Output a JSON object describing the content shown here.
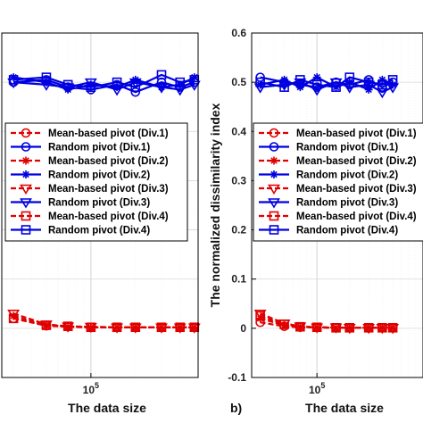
{
  "chart_data": [
    {
      "panel": "a",
      "type": "line",
      "xlabel": "The data size",
      "ylabel": "",
      "x_scale": "log",
      "x_tick_labels": [
        "10^5"
      ],
      "ylim": [
        -0.1,
        0.6
      ],
      "grid": true,
      "legend_position": "center-left",
      "x": [
        30000,
        50000,
        70000,
        100000,
        150000,
        200000,
        300000,
        400000,
        500000
      ],
      "series": [
        {
          "name": "Mean-based pivot (Div.1)",
          "color": "#e00000",
          "line": "dashed",
          "marker": "circle",
          "values": [
            0.02,
            0.005,
            0.003,
            0.002,
            0.002,
            0.002,
            0.002,
            0.002,
            0.002
          ]
        },
        {
          "name": "Random pivot (Div.1)",
          "color": "#0000e0",
          "line": "solid",
          "marker": "circle",
          "values": [
            0.5,
            0.505,
            0.49,
            0.485,
            0.495,
            0.48,
            0.5,
            0.49,
            0.5
          ]
        },
        {
          "name": "Mean-based pivot (Div.2)",
          "color": "#e00000",
          "line": "dashed",
          "marker": "star",
          "values": [
            0.025,
            0.006,
            0.003,
            0.002,
            0.002,
            0.002,
            0.002,
            0.002,
            0.002
          ]
        },
        {
          "name": "Random pivot (Div.2)",
          "color": "#0000e0",
          "line": "solid",
          "marker": "star",
          "values": [
            0.51,
            0.5,
            0.485,
            0.495,
            0.49,
            0.505,
            0.49,
            0.495,
            0.51
          ]
        },
        {
          "name": "Mean-based pivot (Div.3)",
          "color": "#e00000",
          "line": "dashed",
          "marker": "triangle-down",
          "values": [
            0.03,
            0.008,
            0.004,
            0.003,
            0.002,
            0.002,
            0.002,
            0.002,
            0.002
          ]
        },
        {
          "name": "Random pivot (Div.3)",
          "color": "#0000e0",
          "line": "solid",
          "marker": "triangle-down",
          "values": [
            0.5,
            0.495,
            0.49,
            0.5,
            0.485,
            0.5,
            0.49,
            0.485,
            0.495
          ]
        },
        {
          "name": "Mean-based pivot (Div.4)",
          "color": "#e00000",
          "line": "dashed",
          "marker": "square",
          "values": [
            0.02,
            0.006,
            0.004,
            0.002,
            0.002,
            0.002,
            0.002,
            0.002,
            0.002
          ]
        },
        {
          "name": "Random pivot (Div.4)",
          "color": "#0000e0",
          "line": "solid",
          "marker": "square",
          "values": [
            0.505,
            0.51,
            0.495,
            0.49,
            0.5,
            0.49,
            0.515,
            0.5,
            0.505
          ]
        }
      ]
    },
    {
      "panel": "b",
      "panel_label": "b)",
      "type": "line",
      "xlabel": "The data size",
      "ylabel": "The normalized dissimilarity index",
      "x_scale": "log",
      "x_tick_labels": [
        "10^5"
      ],
      "ylim": [
        -0.1,
        0.6
      ],
      "y_ticks": [
        "-0.1",
        "0",
        "0.1",
        "0.2",
        "0.3",
        "0.4",
        "0.5",
        "0.6"
      ],
      "grid": true,
      "legend_position": "center-right",
      "x": [
        30000,
        50000,
        70000,
        100000,
        150000,
        200000,
        300000,
        400000,
        500000
      ],
      "series": [
        {
          "name": "Mean-based pivot (Div.1)",
          "color": "#e00000",
          "line": "dashed",
          "marker": "circle",
          "values": [
            0.012,
            0.004,
            0.002,
            0.002,
            0.001,
            0.001,
            0.001,
            0.001,
            0.001
          ]
        },
        {
          "name": "Random pivot (Div.1)",
          "color": "#0000e0",
          "line": "solid",
          "marker": "circle",
          "values": [
            0.51,
            0.5,
            0.495,
            0.49,
            0.5,
            0.495,
            0.505,
            0.49,
            0.5
          ]
        },
        {
          "name": "Mean-based pivot (Div.2)",
          "color": "#e00000",
          "line": "dashed",
          "marker": "star",
          "values": [
            0.02,
            0.006,
            0.003,
            0.002,
            0.001,
            0.001,
            0.001,
            0.001,
            0.001
          ]
        },
        {
          "name": "Random pivot (Div.2)",
          "color": "#0000e0",
          "line": "solid",
          "marker": "star",
          "values": [
            0.495,
            0.505,
            0.49,
            0.51,
            0.49,
            0.5,
            0.485,
            0.505,
            0.495
          ]
        },
        {
          "name": "Mean-based pivot (Div.3)",
          "color": "#e00000",
          "line": "dashed",
          "marker": "triangle-down",
          "values": [
            0.03,
            0.01,
            0.004,
            0.002,
            0.002,
            0.001,
            0.001,
            0.001,
            0.001
          ]
        },
        {
          "name": "Random pivot (Div.3)",
          "color": "#0000e0",
          "line": "solid",
          "marker": "triangle-down",
          "values": [
            0.49,
            0.495,
            0.5,
            0.485,
            0.5,
            0.49,
            0.495,
            0.48,
            0.49
          ]
        },
        {
          "name": "Mean-based pivot (Div.4)",
          "color": "#e00000",
          "line": "dashed",
          "marker": "square",
          "values": [
            0.025,
            0.008,
            0.003,
            0.002,
            0.001,
            0.001,
            0.001,
            0.001,
            0.001
          ]
        },
        {
          "name": "Random pivot (Div.4)",
          "color": "#0000e0",
          "line": "solid",
          "marker": "square",
          "values": [
            0.5,
            0.49,
            0.505,
            0.495,
            0.49,
            0.51,
            0.5,
            0.495,
            0.505
          ]
        }
      ]
    }
  ]
}
